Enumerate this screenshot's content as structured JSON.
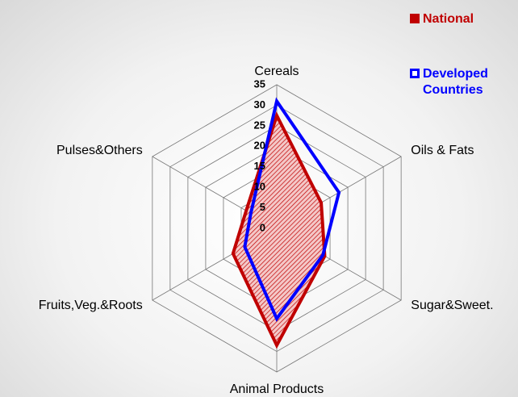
{
  "chart_data": {
    "type": "radar",
    "categories": [
      "Cereals",
      "Oils & Fats",
      "Sugar&Sweet.",
      "Animal Products",
      "Fruits,Veg.&Roots",
      "Pulses&Others"
    ],
    "series": [
      {
        "name": "National",
        "color": "#c00000",
        "values": [
          27.5,
          12.5,
          13.5,
          28.5,
          12.3,
          8.6
        ]
      },
      {
        "name": "Developed Countries",
        "color": "#0000ff",
        "values": [
          31,
          17.5,
          13,
          22,
          9,
          7.3
        ]
      }
    ],
    "ylim": [
      0,
      35
    ],
    "yticks": [
      0,
      5,
      10,
      15,
      20,
      25,
      30,
      35
    ],
    "grid": true
  }
}
